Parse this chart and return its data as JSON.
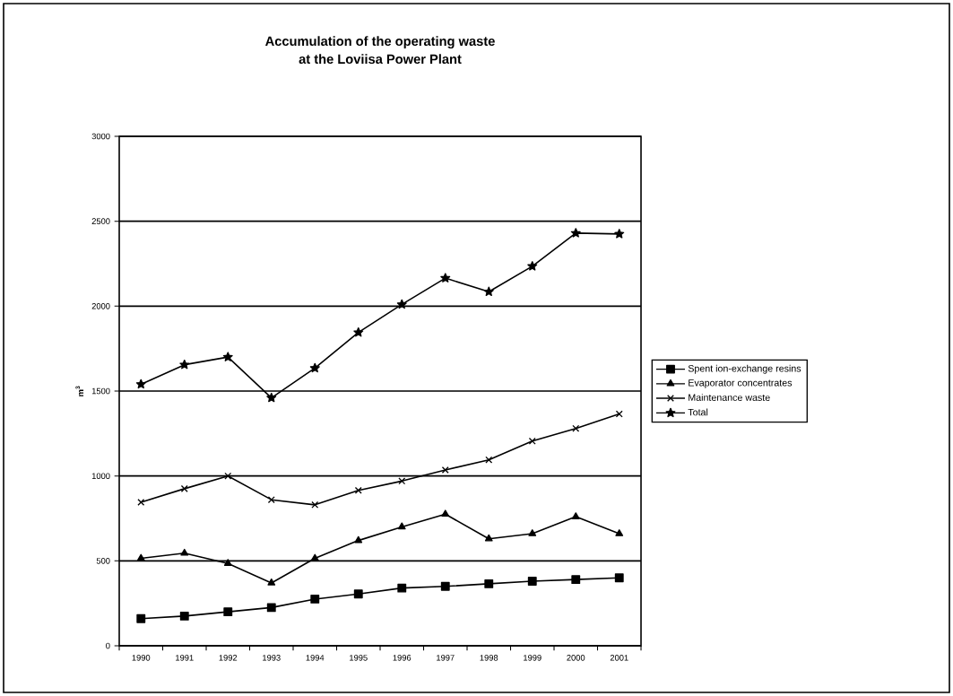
{
  "chart_data": {
    "type": "line",
    "title": "Accumulation of the operating waste\nat the Loviisa Power Plant",
    "ylabel": "m$^{3}$",
    "categories": [
      "1990",
      "1991",
      "1992",
      "1993",
      "1994",
      "1995",
      "1996",
      "1997",
      "1998",
      "1999",
      "2000",
      "2001"
    ],
    "series": [
      {
        "name": "Spent ion-exchange resins",
        "color": "#000000",
        "marker": "square",
        "values": [
          160,
          175,
          200,
          225,
          275,
          305,
          340,
          350,
          365,
          380,
          390,
          400
        ]
      },
      {
        "name": "Evaporator concentrates",
        "color": "#000000",
        "marker": "triangle",
        "values": [
          515,
          545,
          485,
          370,
          515,
          620,
          700,
          775,
          630,
          660,
          760,
          660
        ]
      },
      {
        "name": "Maintenance waste",
        "color": "#000000",
        "marker": "cross",
        "values": [
          845,
          925,
          1000,
          860,
          830,
          915,
          970,
          1035,
          1095,
          1205,
          1280,
          1365
        ]
      },
      {
        "name": "Total",
        "color": "#000000",
        "marker": "star",
        "values": [
          1540,
          1655,
          1700,
          1460,
          1635,
          1845,
          2010,
          2165,
          2085,
          2235,
          2430,
          2425
        ]
      }
    ],
    "ylim": [
      0,
      3000
    ],
    "yticks": [
      0,
      500,
      1000,
      1500,
      2000,
      2500,
      3000
    ],
    "grid": "y",
    "legend": "right",
    "line_style": "solid"
  }
}
